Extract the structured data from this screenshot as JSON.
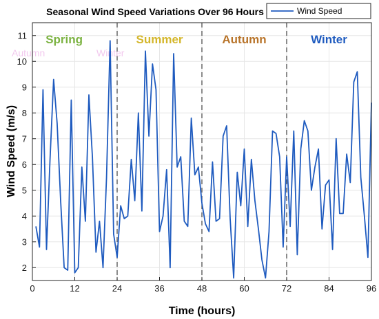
{
  "chart_data": {
    "type": "line",
    "title": "Seasonal Wind Speed Variations Over 96 Hours",
    "xlabel": "Time (hours)",
    "ylabel": "Wind Speed (m/s)",
    "xlim": [
      0,
      96
    ],
    "ylim": [
      1.5,
      11.5
    ],
    "xticks": [
      0,
      12,
      24,
      36,
      48,
      60,
      72,
      84,
      96
    ],
    "yticks": [
      2,
      3,
      4,
      5,
      6,
      7,
      8,
      9,
      10,
      11
    ],
    "grid": true,
    "legend": {
      "position": "top-right",
      "entries": [
        "Wind Speed"
      ]
    },
    "season_dividers": [
      24,
      48,
      72
    ],
    "seasons": [
      {
        "label": "Spring",
        "x": 9,
        "color": "#7cb342"
      },
      {
        "label": "Summer",
        "x": 36,
        "color": "#d4b62a"
      },
      {
        "label": "Autumn",
        "x": 60,
        "color": "#b8742a"
      },
      {
        "label": "Winter",
        "x": 84,
        "color": "#1f5bbf"
      }
    ],
    "ghost_labels": [
      {
        "label": "Autumn",
        "x": 0,
        "y": 10.2,
        "color": "#f2c9ee"
      },
      {
        "label": "Winter",
        "x": 24,
        "y": 10.2,
        "color": "#f2c9ee"
      }
    ],
    "series": [
      {
        "name": "Wind Speed",
        "color": "#1f5bbf",
        "x": [
          1,
          2,
          3,
          4,
          5,
          6,
          7,
          8,
          9,
          10,
          11,
          12,
          13,
          14,
          15,
          16,
          17,
          18,
          19,
          20,
          21,
          22,
          23,
          24,
          25,
          26,
          27,
          28,
          29,
          30,
          31,
          32,
          33,
          34,
          35,
          36,
          37,
          38,
          39,
          40,
          41,
          42,
          43,
          44,
          45,
          46,
          47,
          48,
          49,
          50,
          51,
          52,
          53,
          54,
          55,
          56,
          57,
          58,
          59,
          60,
          61,
          62,
          63,
          64,
          65,
          66,
          67,
          68,
          69,
          70,
          71,
          72,
          73,
          74,
          75,
          76,
          77,
          78,
          79,
          80,
          81,
          82,
          83,
          84,
          85,
          86,
          87,
          88,
          89,
          90,
          91,
          92,
          93,
          94,
          95,
          96
        ],
        "values": [
          3.6,
          2.8,
          8.9,
          2.7,
          6.2,
          9.3,
          7.6,
          4.6,
          2.0,
          1.9,
          8.5,
          1.8,
          2.0,
          5.9,
          3.8,
          8.7,
          6.3,
          2.6,
          3.8,
          2.0,
          5.5,
          10.8,
          3.3,
          2.4,
          4.4,
          3.9,
          4.0,
          6.2,
          4.6,
          8.0,
          4.2,
          10.4,
          7.1,
          9.9,
          8.9,
          3.4,
          4.0,
          5.8,
          2.0,
          10.3,
          5.9,
          6.3,
          3.8,
          3.6,
          7.8,
          5.6,
          5.9,
          4.5,
          3.7,
          3.4,
          6.1,
          3.8,
          3.9,
          7.1,
          7.5,
          3.9,
          1.6,
          5.7,
          4.4,
          6.6,
          3.6,
          6.2,
          4.6,
          3.5,
          2.3,
          1.6,
          3.4,
          7.3,
          7.2,
          6.3,
          2.8,
          6.3,
          3.6,
          7.3,
          2.5,
          6.6,
          7.7,
          7.3,
          5.0,
          5.9,
          6.6,
          3.5,
          5.2,
          5.4,
          2.7,
          7.0,
          4.1,
          4.1,
          6.4,
          5.3,
          9.2,
          9.6,
          5.5,
          4.0,
          2.4,
          8.4
        ]
      }
    ]
  }
}
